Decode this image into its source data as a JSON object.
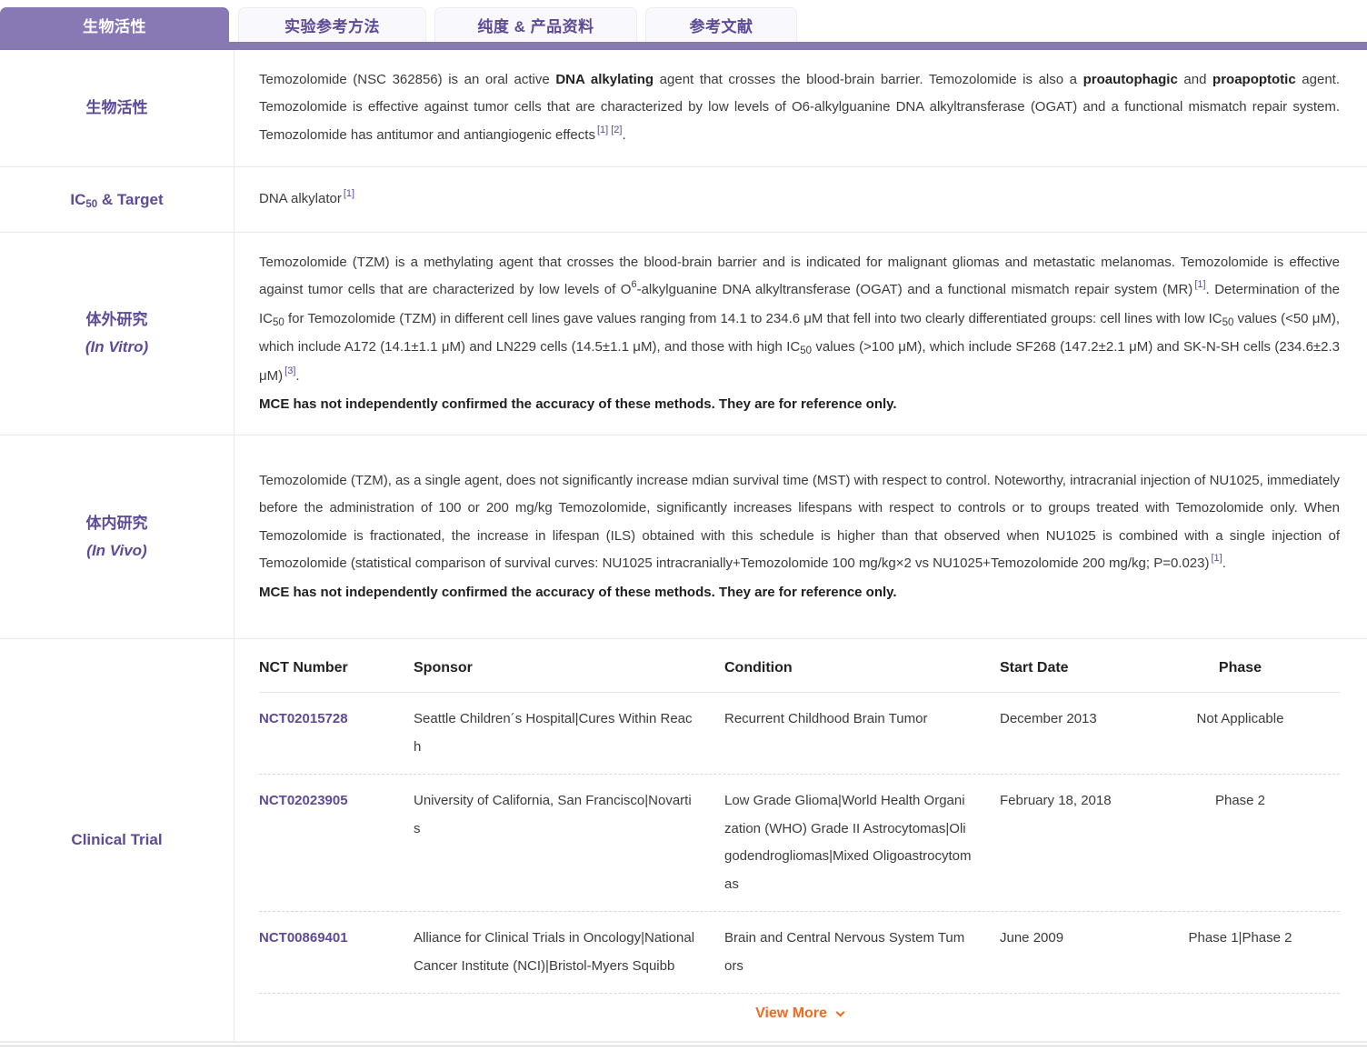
{
  "colors": {
    "accent_purple": "#8878b4",
    "purple_text": "#5d4a98",
    "orange": "#f26a1e"
  },
  "tabs": [
    {
      "label": "生物活性",
      "active": true
    },
    {
      "label": "实验参考方法",
      "active": false
    },
    {
      "label": "纯度 & 产品资料",
      "active": false
    },
    {
      "label": "参考文献",
      "active": false
    }
  ],
  "bioactivity": {
    "sidebar_label": "生物活性",
    "parts": [
      "Temozolomide (NSC 362856) is an oral active ",
      "DNA alkylating",
      " agent that crosses the blood-brain barrier. Temozolomide is also a ",
      "proautophagic",
      " and ",
      "proapoptotic",
      " agent. Temozolomide is effective against tumor cells that are characterized by low levels of O6-alkylguanine DNA alkyltransferase (OGAT) and a functional mismatch repair system. Temozolomide has antitumor and antiangiogenic effects",
      "[1] [2]",
      "."
    ]
  },
  "ic50": {
    "label_ic": "IC",
    "label_sub": "50",
    "label_rest": " & Target",
    "value": "DNA alkylator",
    "ref": "[1]"
  },
  "invitro": {
    "sidebar_label": "体外研究",
    "sidebar_sublabel": "(In Vitro)",
    "parts": [
      "Temozolomide (TZM) is a methylating agent that crosses the blood-brain barrier and is indicated for malignant gliomas and metastatic melanomas. Temozolomide is effective against tumor cells that are characterized by low levels of O",
      "6",
      "-alkylguanine DNA alkyltransferase (OGAT) and a functional mismatch repair system (MR)",
      "[1]",
      ". Determination of the IC",
      "50",
      " for Temozolomide (TZM) in different cell lines gave values ranging from 14.1 to 234.6 μM that fell into two clearly differentiated groups: cell lines with low IC",
      "50",
      " values (<50 μM), which include A172 (14.1±1.1 μM) and LN229 cells (14.5±1.1 μM), and those with high IC",
      "50",
      " values (>100 μM), which include SF268 (147.2±2.1 μM) and SK-N-SH cells (234.6±2.3 μM)",
      "[3]",
      "."
    ],
    "disclaimer": "MCE has not independently confirmed the accuracy of these methods. They are for reference only."
  },
  "invivo": {
    "sidebar_label": "体内研究",
    "sidebar_sublabel": "(In Vivo)",
    "parts": [
      "Temozolomide (TZM), as a single agent, does not significantly increase mdian survival time (MST) with respect to control. Noteworthy, intracranial injection of NU1025, immediately before the administration of 100 or 200 mg/kg Temozolomide, significantly increases lifespans with respect to controls or to groups treated with Temozolomide only. When Temozolomide is fractionated, the increase in lifespan (ILS) obtained with this schedule is higher than that observed when NU1025 is combined with a single injection of Temozolomide (statistical comparison of survival curves: NU1025 intracranially+Temozolomide 100 mg/kg×2 vs NU1025+Temozolomide 200 mg/kg; P=0.023)",
      "[1]",
      "."
    ],
    "disclaimer": "MCE has not independently confirmed the accuracy of these methods. They are for reference only."
  },
  "clinical_trial": {
    "sidebar_label": "Clinical Trial",
    "headers": [
      "NCT Number",
      "Sponsor",
      "Condition",
      "Start Date",
      "Phase"
    ],
    "rows": [
      {
        "nct": "NCT02015728",
        "sponsor": "Seattle Children´s Hospital|Cures Within Reach",
        "condition": "Recurrent Childhood Brain Tumor",
        "start_date": "December 2013",
        "phase": "Not Applicable"
      },
      {
        "nct": "NCT02023905",
        "sponsor": "University of California, San Francisco|Novartis",
        "condition": "Low Grade Glioma|World Health Organization (WHO) Grade II Astrocytomas|Oligodendrogliomas|Mixed Oligoastrocytomas",
        "start_date": "February 18, 2018",
        "phase": "Phase 2"
      },
      {
        "nct": "NCT00869401",
        "sponsor": "Alliance for Clinical Trials in Oncology|National Cancer Institute (NCI)|Bristol-Myers Squibb",
        "condition": "Brain and Central Nervous System Tumors",
        "start_date": "June 2009",
        "phase": "Phase 1|Phase 2"
      }
    ],
    "view_more_label": "View More"
  }
}
